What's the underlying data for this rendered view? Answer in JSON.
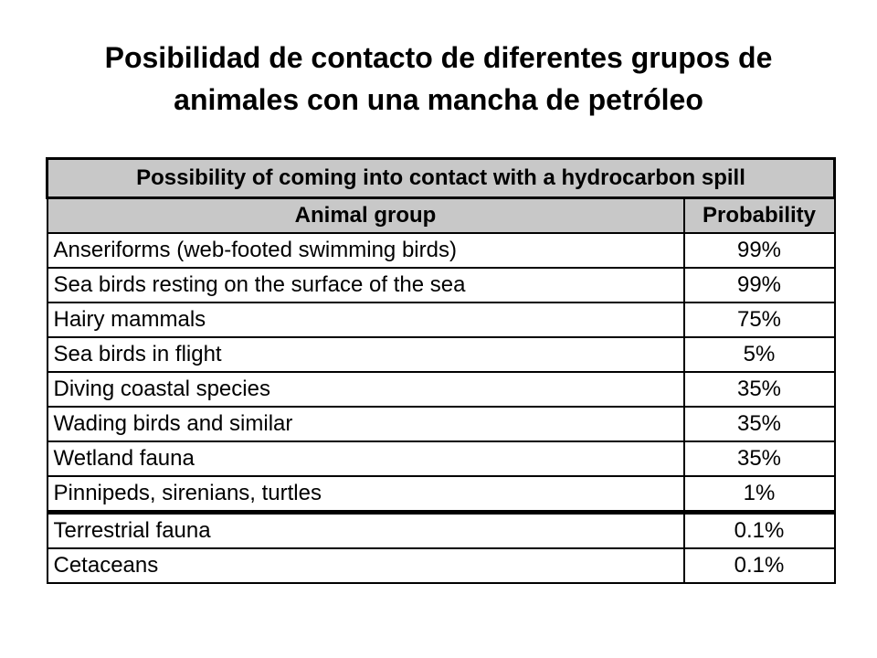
{
  "title": {
    "line1": "Posibilidad de contacto de diferentes grupos de",
    "line2": "animales con una mancha de petróleo"
  },
  "table": {
    "caption": "Possibility of coming into contact with a hydrocarbon spill",
    "headers": {
      "group": "Animal group",
      "probability": "Probability"
    },
    "rows": [
      {
        "group": "Anseriforms (web-footed swimming birds)",
        "probability": "99%"
      },
      {
        "group": "Sea birds resting on the surface of the sea",
        "probability": "99%"
      },
      {
        "group": "Hairy mammals",
        "probability": "75%"
      },
      {
        "group": "Sea birds in flight",
        "probability": "5%"
      },
      {
        "group": "Diving coastal species",
        "probability": "35%"
      },
      {
        "group": "Wading birds and similar",
        "probability": "35%"
      },
      {
        "group": "Wetland fauna",
        "probability": "35%"
      },
      {
        "group": "Pinnipeds, sirenians, turtles",
        "probability": "1%"
      },
      {
        "group": "Terrestrial fauna",
        "probability": "0.1%"
      },
      {
        "group": "Cetaceans",
        "probability": "0.1%"
      }
    ]
  }
}
